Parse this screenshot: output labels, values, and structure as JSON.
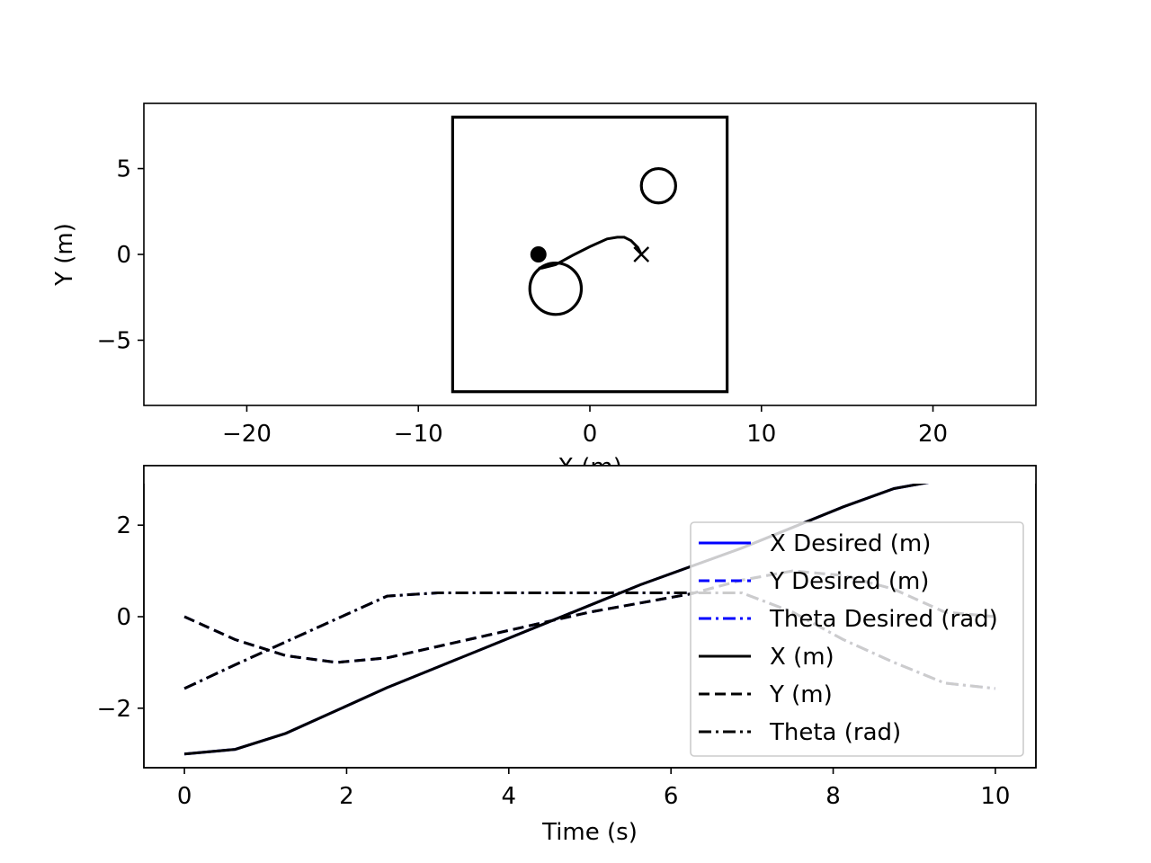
{
  "chart_data": [
    {
      "type": "line",
      "panel": "top",
      "xlabel": "X (m)",
      "ylabel": "Y (m)",
      "xlim": [
        -26,
        26
      ],
      "ylim": [
        -8.8,
        8.8
      ],
      "xticks": [
        -20,
        -10,
        0,
        10,
        20
      ],
      "xtick_labels": [
        "−20",
        "−10",
        "0",
        "10",
        "20"
      ],
      "yticks": [
        -5,
        0,
        5
      ],
      "ytick_labels": [
        "−5",
        "0",
        "5"
      ],
      "grid": false,
      "boundary_square": {
        "x": [
          -8,
          8
        ],
        "y": [
          -8,
          8
        ]
      },
      "obstacles": [
        {
          "cx": 4,
          "cy": 4,
          "r": 1
        },
        {
          "cx": -2,
          "cy": -2,
          "r": 1.5
        }
      ],
      "start_point": {
        "x": -3,
        "y": 0
      },
      "goal_marker": {
        "x": 3,
        "y": 0
      },
      "trajectory": {
        "x": [
          -3,
          -2.8,
          -2.0,
          -1.0,
          0.0,
          1.0,
          1.6,
          2.0,
          2.4,
          2.8,
          3.0
        ],
        "y": [
          -0.8,
          -0.8,
          -0.6,
          -0.05,
          0.45,
          0.9,
          1.0,
          1.0,
          0.8,
          0.4,
          0.0
        ]
      }
    },
    {
      "type": "line",
      "panel": "bottom",
      "xlabel": "Time (s)",
      "ylabel": "",
      "xlim": [
        -0.5,
        10.5
      ],
      "ylim": [
        -3.3,
        3.3
      ],
      "xticks": [
        0,
        2,
        4,
        6,
        8,
        10
      ],
      "xtick_labels": [
        "0",
        "2",
        "4",
        "6",
        "8",
        "10"
      ],
      "yticks": [
        -2,
        0,
        2
      ],
      "ytick_labels": [
        "−2",
        "0",
        "2"
      ],
      "grid": false,
      "legend_position": "right",
      "x": [
        0,
        0.625,
        1.25,
        1.875,
        2.5,
        3.125,
        3.75,
        4.375,
        5.0,
        5.625,
        6.25,
        6.875,
        7.5,
        8.125,
        8.75,
        9.375,
        10.0
      ],
      "series": [
        {
          "name": "X Desired (m)",
          "color": "#0000ff",
          "dash": "solid",
          "values": [
            -3.0,
            -2.9,
            -2.55,
            -2.05,
            -1.55,
            -1.1,
            -0.65,
            -0.2,
            0.25,
            0.7,
            1.1,
            1.5,
            1.95,
            2.4,
            2.8,
            3.0,
            3.0
          ]
        },
        {
          "name": "Y Desired (m)",
          "color": "#0000ff",
          "dash": "dashed",
          "values": [
            0.0,
            -0.5,
            -0.85,
            -1.0,
            -0.9,
            -0.65,
            -0.4,
            -0.15,
            0.1,
            0.3,
            0.5,
            0.8,
            1.0,
            0.9,
            0.6,
            0.1,
            0.0
          ]
        },
        {
          "name": "Theta Desired (rad)",
          "color": "#0000ff",
          "dash": "dashdot",
          "values": [
            -1.57,
            -1.05,
            -0.55,
            -0.05,
            0.45,
            0.52,
            0.52,
            0.52,
            0.52,
            0.52,
            0.52,
            0.52,
            0.1,
            -0.5,
            -1.0,
            -1.45,
            -1.57
          ]
        },
        {
          "name": "X (m)",
          "color": "#000000",
          "dash": "solid",
          "values": [
            -3.0,
            -2.9,
            -2.55,
            -2.05,
            -1.55,
            -1.1,
            -0.65,
            -0.2,
            0.25,
            0.7,
            1.1,
            1.5,
            1.95,
            2.4,
            2.8,
            3.0,
            3.02
          ]
        },
        {
          "name": "Y (m)",
          "color": "#000000",
          "dash": "dashed",
          "values": [
            0.0,
            -0.5,
            -0.85,
            -1.0,
            -0.9,
            -0.65,
            -0.4,
            -0.15,
            0.1,
            0.3,
            0.5,
            0.8,
            1.0,
            0.9,
            0.6,
            0.1,
            0.0
          ]
        },
        {
          "name": "Theta (rad)",
          "color": "#000000",
          "dash": "dashdot",
          "values": [
            -1.57,
            -1.05,
            -0.55,
            -0.05,
            0.45,
            0.52,
            0.52,
            0.52,
            0.52,
            0.52,
            0.52,
            0.52,
            0.1,
            -0.5,
            -1.0,
            -1.45,
            -1.57
          ]
        }
      ]
    }
  ]
}
